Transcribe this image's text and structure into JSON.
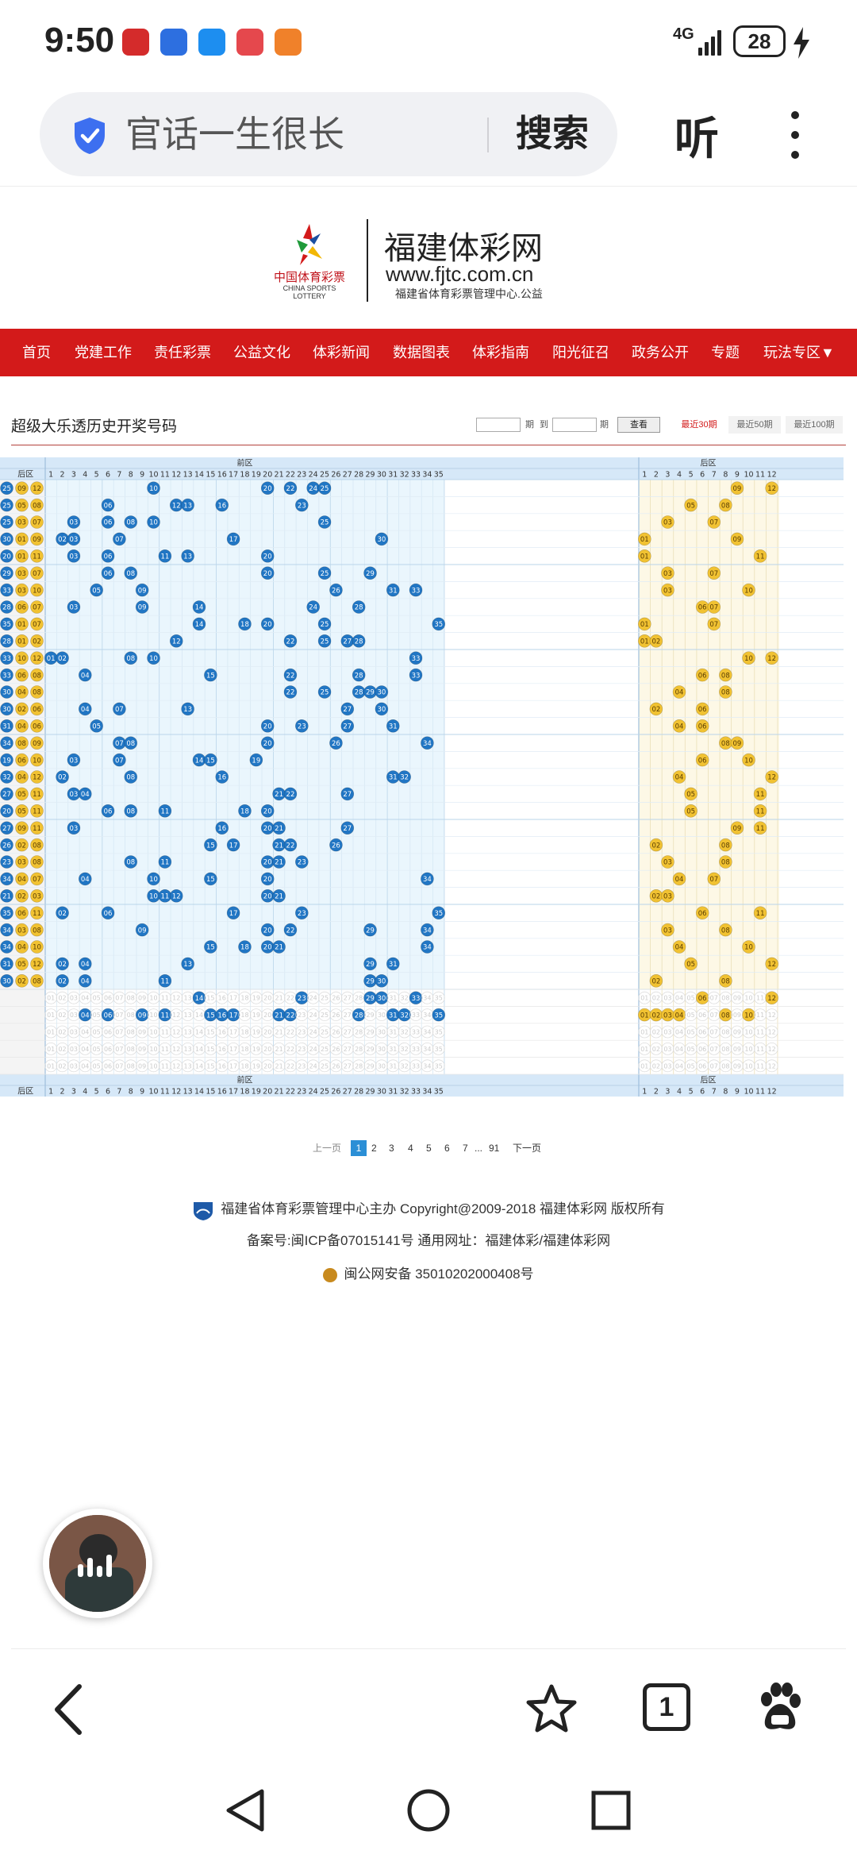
{
  "status_bar": {
    "time": "9:50",
    "network": "4G",
    "battery": "28"
  },
  "browser": {
    "address_text": "官话一生很长",
    "search_label": "搜索",
    "listen_label": "听"
  },
  "site": {
    "logo_cn": "中国体育彩票",
    "logo_en": "CHINA SPORTS LOTTERY",
    "name": "福建体彩网",
    "url": "www.fjtc.com.cn",
    "subtitle": "福建省体育彩票管理中心.公益"
  },
  "nav": [
    "首页",
    "党建工作",
    "责任彩票",
    "公益文化",
    "体彩新闻",
    "数据图表",
    "体彩指南",
    "阳光征召",
    "政务公开",
    "专题",
    "玩法专区▼"
  ],
  "page": {
    "title": "超级大乐透历史开奖号码"
  },
  "query": {
    "to_label": "到",
    "period_label": "期",
    "search_button": "查看",
    "tabs": [
      "最近30期",
      "最近50期",
      "最近100期"
    ],
    "active_tab": 0
  },
  "chart_data": {
    "type": "table",
    "front_zone_label": "前区",
    "back_zone_label": "后区",
    "front_numbers": [
      1,
      2,
      3,
      4,
      5,
      6,
      7,
      8,
      9,
      10,
      11,
      12,
      13,
      14,
      15,
      16,
      17,
      18,
      19,
      20,
      21,
      22,
      23,
      24,
      25,
      26,
      27,
      28,
      29,
      30,
      31,
      32,
      33,
      34,
      35
    ],
    "back_numbers": [
      1,
      2,
      3,
      4,
      5,
      6,
      7,
      8,
      9,
      10,
      11,
      12
    ],
    "draws": [
      {
        "prefix": [
          "25",
          "09",
          "12"
        ],
        "front": [
          10,
          20,
          22,
          24,
          25
        ],
        "back": [
          9,
          12
        ]
      },
      {
        "prefix": [
          "25",
          "05",
          "08"
        ],
        "front": [
          6,
          12,
          13,
          16,
          23
        ],
        "back": [
          5,
          8
        ]
      },
      {
        "prefix": [
          "25",
          "03",
          "07"
        ],
        "front": [
          3,
          6,
          8,
          10,
          25
        ],
        "back": [
          3,
          7
        ]
      },
      {
        "prefix": [
          "30",
          "01",
          "09"
        ],
        "front": [
          2,
          3,
          7,
          17,
          30
        ],
        "back": [
          1,
          9
        ]
      },
      {
        "prefix": [
          "20",
          "01",
          "11"
        ],
        "front": [
          3,
          6,
          11,
          13,
          20
        ],
        "back": [
          1,
          11
        ]
      },
      {
        "prefix": [
          "29",
          "03",
          "07"
        ],
        "front": [
          6,
          8,
          20,
          25,
          29
        ],
        "back": [
          3,
          7
        ]
      },
      {
        "prefix": [
          "33",
          "03",
          "10"
        ],
        "front": [
          5,
          9,
          26,
          31,
          33
        ],
        "back": [
          3,
          10
        ]
      },
      {
        "prefix": [
          "28",
          "06",
          "07"
        ],
        "front": [
          3,
          9,
          14,
          24,
          28
        ],
        "back": [
          6,
          7
        ]
      },
      {
        "prefix": [
          "35",
          "01",
          "07"
        ],
        "front": [
          14,
          18,
          20,
          25,
          35
        ],
        "back": [
          1,
          7
        ]
      },
      {
        "prefix": [
          "28",
          "01",
          "02"
        ],
        "front": [
          12,
          22,
          25,
          27,
          28
        ],
        "back": [
          1,
          2
        ]
      },
      {
        "prefix": [
          "33",
          "10",
          "12"
        ],
        "front": [
          1,
          2,
          8,
          10,
          33
        ],
        "back": [
          10,
          12
        ]
      },
      {
        "prefix": [
          "33",
          "06",
          "08"
        ],
        "front": [
          4,
          15,
          22,
          28,
          33
        ],
        "back": [
          6,
          8
        ]
      },
      {
        "prefix": [
          "30",
          "04",
          "08"
        ],
        "front": [
          22,
          25,
          28,
          29,
          30
        ],
        "back": [
          4,
          8
        ]
      },
      {
        "prefix": [
          "30",
          "02",
          "06"
        ],
        "front": [
          4,
          7,
          13,
          27,
          30
        ],
        "back": [
          2,
          6
        ]
      },
      {
        "prefix": [
          "31",
          "04",
          "06"
        ],
        "front": [
          5,
          20,
          23,
          27,
          31
        ],
        "back": [
          4,
          6
        ]
      },
      {
        "prefix": [
          "34",
          "08",
          "09"
        ],
        "front": [
          7,
          8,
          20,
          26,
          34
        ],
        "back": [
          8,
          9
        ]
      },
      {
        "prefix": [
          "19",
          "06",
          "10"
        ],
        "front": [
          3,
          7,
          14,
          15,
          19
        ],
        "back": [
          6,
          10
        ]
      },
      {
        "prefix": [
          "32",
          "04",
          "12"
        ],
        "front": [
          2,
          8,
          16,
          31,
          32
        ],
        "back": [
          4,
          12
        ]
      },
      {
        "prefix": [
          "27",
          "05",
          "11"
        ],
        "front": [
          3,
          4,
          21,
          22,
          27
        ],
        "back": [
          5,
          11
        ]
      },
      {
        "prefix": [
          "20",
          "05",
          "11"
        ],
        "front": [
          6,
          8,
          11,
          18,
          20
        ],
        "back": [
          5,
          11
        ]
      },
      {
        "prefix": [
          "27",
          "09",
          "11"
        ],
        "front": [
          3,
          16,
          20,
          21,
          27
        ],
        "back": [
          9,
          11
        ]
      },
      {
        "prefix": [
          "26",
          "02",
          "08"
        ],
        "front": [
          15,
          17,
          21,
          22,
          26
        ],
        "back": [
          2,
          8
        ]
      },
      {
        "prefix": [
          "23",
          "03",
          "08"
        ],
        "front": [
          8,
          11,
          20,
          21,
          23
        ],
        "back": [
          3,
          8
        ]
      },
      {
        "prefix": [
          "34",
          "04",
          "07"
        ],
        "front": [
          4,
          10,
          15,
          20,
          34
        ],
        "back": [
          4,
          7
        ]
      },
      {
        "prefix": [
          "21",
          "02",
          "03"
        ],
        "front": [
          10,
          11,
          12,
          20,
          21
        ],
        "back": [
          2,
          3
        ]
      },
      {
        "prefix": [
          "35",
          "06",
          "11"
        ],
        "front": [
          2,
          6,
          17,
          23,
          35
        ],
        "back": [
          6,
          11
        ]
      },
      {
        "prefix": [
          "34",
          "03",
          "08"
        ],
        "front": [
          9,
          20,
          22,
          29,
          34
        ],
        "back": [
          3,
          8
        ]
      },
      {
        "prefix": [
          "34",
          "04",
          "10"
        ],
        "front": [
          15,
          18,
          20,
          21,
          34
        ],
        "back": [
          4,
          10
        ]
      },
      {
        "prefix": [
          "31",
          "05",
          "12"
        ],
        "front": [
          2,
          4,
          13,
          29,
          31
        ],
        "back": [
          5,
          12
        ]
      },
      {
        "prefix": [
          "30",
          "02",
          "08"
        ],
        "front": [
          2,
          4,
          11,
          29,
          30
        ],
        "back": [
          2,
          8
        ]
      }
    ],
    "summary_rows": [
      {
        "front": [
          14,
          23,
          29,
          30,
          33
        ],
        "back": [
          6,
          12
        ]
      },
      {
        "front": [
          4,
          6,
          9,
          11,
          15,
          16,
          17,
          21,
          22,
          28,
          31,
          32,
          35
        ],
        "back": [
          1,
          2,
          3,
          4,
          8,
          10
        ]
      },
      {
        "front": [],
        "back": []
      },
      {
        "front": [],
        "back": []
      },
      {
        "front": [],
        "back": []
      }
    ]
  },
  "pager": {
    "prev": "上一页",
    "pages": [
      "1",
      "2",
      "3",
      "4",
      "5",
      "6",
      "7"
    ],
    "ellipsis": "...",
    "last": "91",
    "next": "下一页"
  },
  "footer": {
    "line1": "福建省体育彩票管理中心主办 Copyright@2009-2018 福建体彩网 版权所有",
    "line2": "备案号:闽ICP备07015141号    通用网址：福建体彩/福建体彩网",
    "line3": "闽公网安备 35010202000408号"
  },
  "bottom_nav": {
    "tab_count": "1"
  },
  "colors": {
    "nav_red": "#d31a1a",
    "front_ball": "#2176c4",
    "back_ball": "#f1c232",
    "front_bg": "#eaf6fd",
    "back_bg": "#fdf8e6",
    "header_blue": "#d6e8f8"
  }
}
